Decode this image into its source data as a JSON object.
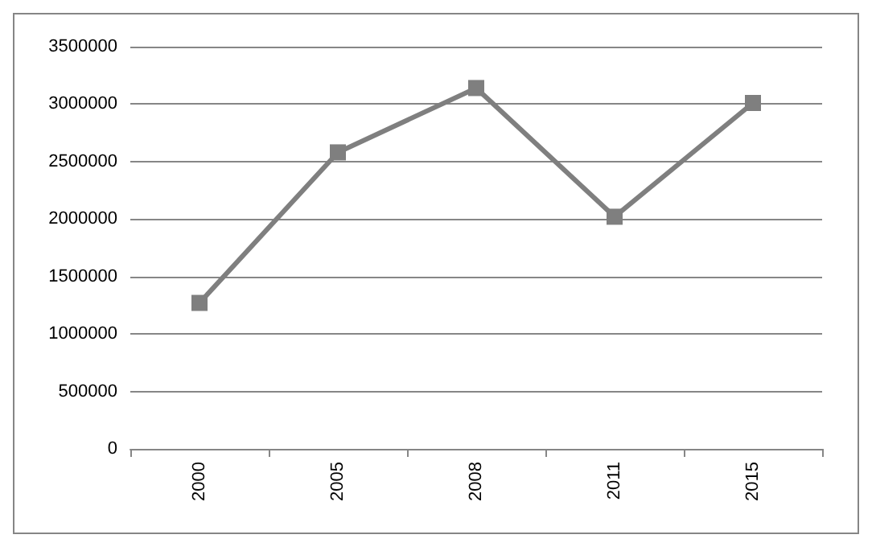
{
  "chart_data": {
    "type": "line",
    "categories": [
      "2000",
      "2005",
      "2008",
      "2011",
      "2015"
    ],
    "series": [
      {
        "color": "#7f7f7f",
        "values": [
          1270000,
          2580000,
          3140000,
          2020000,
          3010000
        ]
      }
    ],
    "ylim": [
      0,
      3500000
    ],
    "yticks": [
      0,
      500000,
      1000000,
      1500000,
      2000000,
      2500000,
      3000000,
      3500000
    ],
    "grid": "y",
    "marker": "square",
    "line_style": "solid"
  }
}
